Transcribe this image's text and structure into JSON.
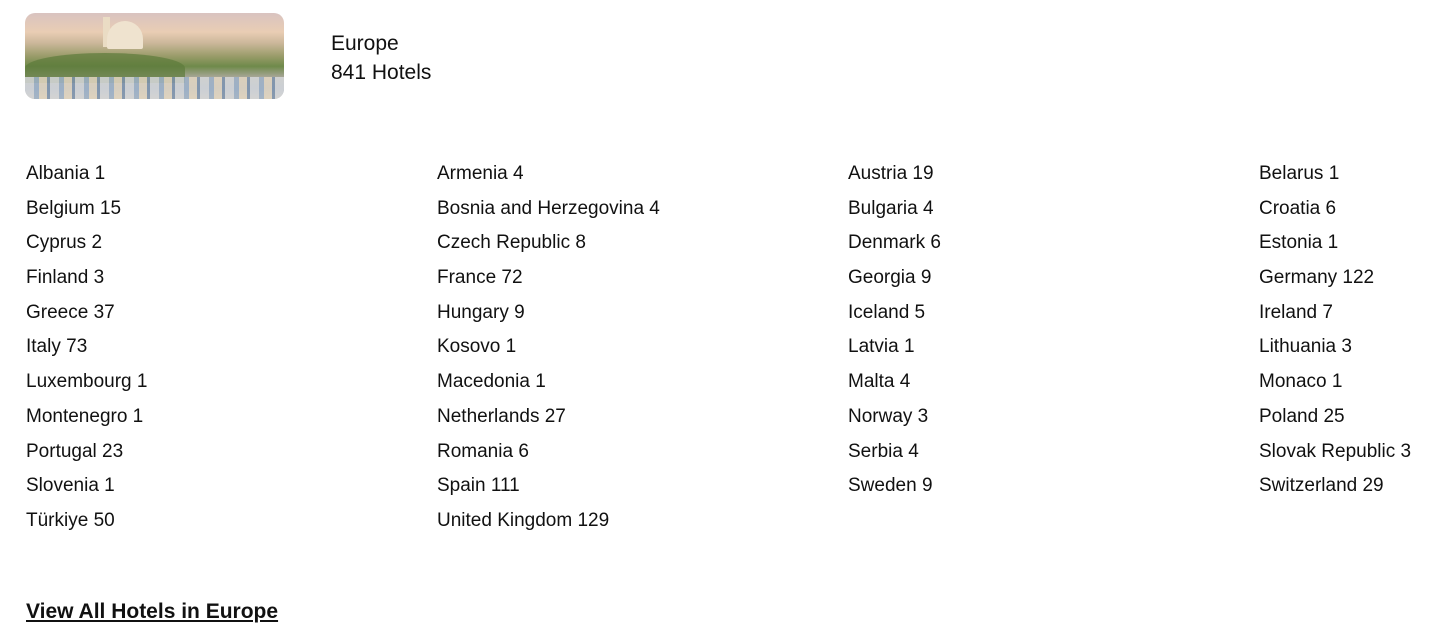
{
  "region": {
    "name": "Europe",
    "hotel_count": "841 Hotels",
    "image_alt": "Paris skyline with Sacré-Cœur"
  },
  "countries": [
    "Albania 1",
    "Armenia 4",
    "Austria 19",
    "Belarus 1",
    "Belgium 15",
    "Bosnia and Herzegovina 4",
    "Bulgaria 4",
    "Croatia 6",
    "Cyprus 2",
    "Czech Republic 8",
    "Denmark 6",
    "Estonia 1",
    "Finland 3",
    "France 72",
    "Georgia 9",
    "Germany 122",
    "Greece 37",
    "Hungary 9",
    "Iceland 5",
    "Ireland 7",
    "Italy 73",
    "Kosovo 1",
    "Latvia 1",
    "Lithuania 3",
    "Luxembourg 1",
    "Macedonia 1",
    "Malta 4",
    "Monaco 1",
    "Montenegro 1",
    "Netherlands 27",
    "Norway 3",
    "Poland 25",
    "Portugal 23",
    "Romania 6",
    "Serbia 4",
    "Slovak Republic 3",
    "Slovenia 1",
    "Spain 111",
    "Sweden 9",
    "Switzerland 29",
    "Türkiye 50",
    "United Kingdom 129"
  ],
  "view_all_label": "View All Hotels in Europe"
}
